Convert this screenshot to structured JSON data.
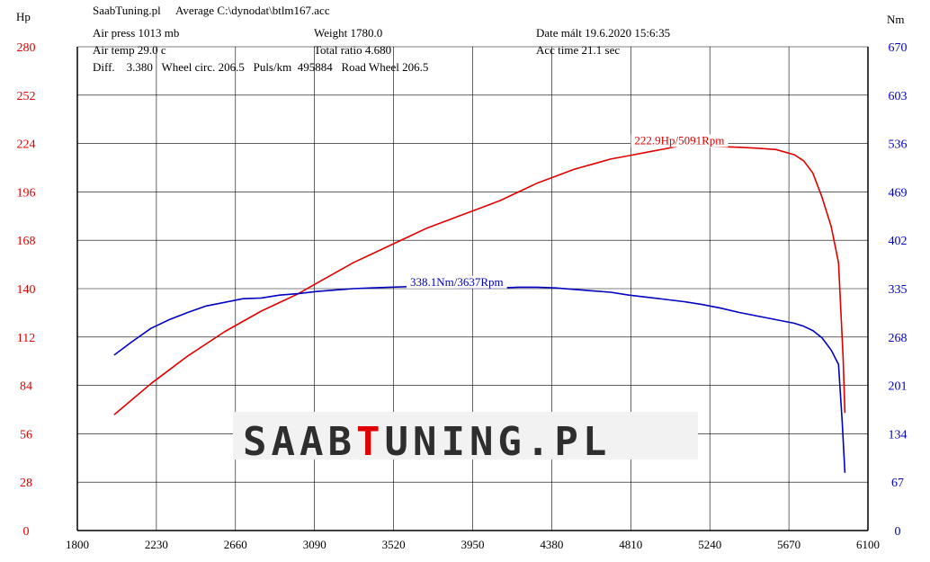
{
  "header": {
    "site": "SaabTuning.pl",
    "average": "Average  C:\\dynodat\\btlm167.acc",
    "air_press": "Air press  1013 mb",
    "weight": "Weight  1780.0",
    "date": "Date mált 19.6.2020 15:6:35",
    "air_temp": "Air temp  29.0 c",
    "total_ratio": "Total ratio 4.680",
    "acc_time": "Acc time  21.1 sec",
    "diff": "Diff.    3.380   Wheel circ. 206.5   Puls/km  495884   Road Wheel 206.5"
  },
  "watermark": {
    "part1": "SAAB",
    "letter_t": "T",
    "part2": "UNING.PL",
    "accent_color": "#e00000",
    "text_color": "#2e2e2e"
  },
  "colors": {
    "hp": "#e00000",
    "nm": "#0000c0",
    "grid": "#000000"
  },
  "chart_data": {
    "type": "line",
    "xlabel": "",
    "x_ticks": [
      1800,
      2230,
      2660,
      3090,
      3520,
      3950,
      4380,
      4810,
      5240,
      5670,
      6100
    ],
    "xlim": [
      1800,
      6100
    ],
    "left_axis": {
      "unit": "Hp",
      "ylim": [
        0,
        280
      ],
      "ticks": [
        0,
        28,
        56,
        84,
        112,
        140,
        168,
        196,
        224,
        252,
        280
      ]
    },
    "right_axis": {
      "unit": "Nm",
      "ylim": [
        0,
        670
      ],
      "ticks": [
        0,
        67,
        134,
        201,
        268,
        335,
        402,
        469,
        536,
        603,
        670
      ]
    },
    "series": [
      {
        "name": "Hp",
        "axis": "left",
        "color": "#e00000",
        "annotation": "222.9Hp/5091Rpm",
        "annotation_at": [
          4830,
          223.5
        ],
        "x": [
          2000,
          2100,
          2200,
          2300,
          2400,
          2500,
          2600,
          2700,
          2800,
          2900,
          3000,
          3100,
          3200,
          3300,
          3400,
          3500,
          3600,
          3700,
          3800,
          3900,
          4000,
          4100,
          4200,
          4300,
          4400,
          4500,
          4600,
          4700,
          4800,
          4900,
          5000,
          5091,
          5200,
          5300,
          5400,
          5500,
          5600,
          5700,
          5750,
          5800,
          5850,
          5900,
          5940,
          5965,
          5975
        ],
        "y": [
          67,
          76,
          85,
          93,
          101,
          108,
          115,
          121,
          127,
          132,
          137,
          143,
          149,
          155,
          160,
          165,
          170,
          175,
          179,
          183,
          187,
          191,
          196,
          201,
          205,
          209,
          212,
          215,
          217,
          219,
          221,
          222.9,
          222.6,
          222.2,
          221.8,
          221.3,
          220.5,
          217.5,
          214,
          207,
          193,
          176,
          155,
          100,
          68
        ]
      },
      {
        "name": "Nm",
        "axis": "right",
        "color": "#0000c0",
        "annotation": "338.1Nm/3637Rpm",
        "annotation_at": [
          3610,
          339
        ],
        "x": [
          2000,
          2100,
          2200,
          2300,
          2400,
          2500,
          2600,
          2700,
          2800,
          2900,
          3000,
          3100,
          3200,
          3300,
          3400,
          3500,
          3637,
          3700,
          3800,
          3900,
          4000,
          4100,
          4200,
          4300,
          4400,
          4500,
          4600,
          4700,
          4800,
          4900,
          5000,
          5100,
          5200,
          5300,
          5400,
          5500,
          5600,
          5700,
          5750,
          5800,
          5850,
          5900,
          5940,
          5960,
          5975
        ],
        "y": [
          243,
          262,
          280,
          292,
          302,
          311,
          316,
          321,
          322,
          326,
          328,
          331,
          333,
          335,
          336,
          337,
          338.1,
          338,
          337,
          336,
          336,
          336,
          337,
          337,
          336,
          334,
          332,
          330,
          326,
          323,
          320,
          317,
          313,
          308,
          302,
          297,
          292,
          287,
          283,
          277,
          267,
          250,
          230,
          150,
          80
        ]
      }
    ],
    "grid": true
  }
}
